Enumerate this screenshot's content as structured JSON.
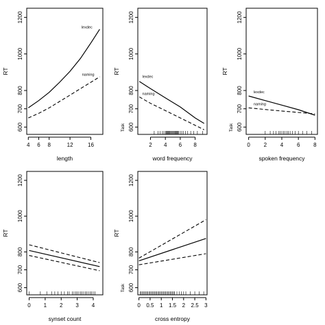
{
  "chart_data": [
    {
      "type": "line",
      "xlabel": "length",
      "ylabel": "RT",
      "side_label": "",
      "xlim": [
        3.7,
        18.3
      ],
      "ylim": [
        560,
        1250
      ],
      "xticks": [
        4,
        6,
        8,
        12,
        16
      ],
      "yticks": [
        600,
        700,
        800,
        1000,
        1200
      ],
      "series": [
        {
          "name": "lexdec",
          "style": "solid",
          "x": [
            4,
            6,
            8,
            10,
            12,
            14,
            16,
            17.7
          ],
          "y": [
            705,
            745,
            790,
            845,
            905,
            975,
            1060,
            1135
          ]
        },
        {
          "name": "naming",
          "style": "dashed",
          "x": [
            4,
            6,
            8,
            10,
            12,
            14,
            16,
            17.7
          ],
          "y": [
            650,
            675,
            705,
            740,
            775,
            810,
            845,
            875
          ]
        }
      ],
      "label_pos": [
        {
          "x": 14.2,
          "y": 1140
        },
        {
          "x": 14.3,
          "y": 880
        }
      ],
      "rug": []
    },
    {
      "type": "line",
      "xlabel": "word frequency",
      "ylabel": "RT",
      "side_label": "Task",
      "xlim": [
        0.3,
        9.6
      ],
      "ylim": [
        560,
        1250
      ],
      "xticks": [
        2,
        4,
        6,
        8
      ],
      "yticks": [
        600,
        700,
        800,
        1000,
        1200
      ],
      "series": [
        {
          "name": "lexdec",
          "style": "solid",
          "x": [
            0.5,
            2,
            4,
            6,
            8,
            9.2
          ],
          "y": [
            850,
            810,
            760,
            710,
            650,
            620
          ]
        },
        {
          "name": "naming",
          "style": "dashed",
          "x": [
            0.5,
            2,
            4,
            6,
            8,
            9.2
          ],
          "y": [
            765,
            730,
            690,
            650,
            610,
            585
          ]
        }
      ],
      "label_pos": [
        {
          "x": 0.9,
          "y": 870
        },
        {
          "x": 0.9,
          "y": 775
        }
      ],
      "rug": [
        2.5,
        3.0,
        3.3,
        3.6,
        3.8,
        4.0,
        4.1,
        4.2,
        4.3,
        4.4,
        4.5,
        4.6,
        4.7,
        4.8,
        4.9,
        5.0,
        5.1,
        5.2,
        5.3,
        5.4,
        5.5,
        5.6,
        5.7,
        5.8,
        6.0,
        6.2,
        6.4,
        6.7,
        7.0,
        7.4,
        7.8,
        8.3,
        9.0
      ]
    },
    {
      "type": "line",
      "xlabel": "spoken frequency",
      "ylabel": "RT",
      "side_label": "Task",
      "xlim": [
        -0.3,
        8.3
      ],
      "ylim": [
        560,
        1250
      ],
      "xticks": [
        0,
        2,
        4,
        6,
        8
      ],
      "yticks": [
        600,
        700,
        800,
        1000,
        1200
      ],
      "series": [
        {
          "name": "lexdec",
          "style": "solid",
          "x": [
            0,
            2,
            4,
            6,
            8
          ],
          "y": [
            770,
            745,
            720,
            695,
            665
          ]
        },
        {
          "name": "naming",
          "style": "dashed",
          "x": [
            0,
            2,
            4,
            6,
            8
          ],
          "y": [
            705,
            696,
            688,
            680,
            672
          ]
        }
      ],
      "label_pos": [
        {
          "x": 0.6,
          "y": 785
        },
        {
          "x": 0.6,
          "y": 720
        }
      ],
      "rug": [
        2.0,
        2.6,
        3.0,
        3.3,
        3.6,
        3.8,
        4.0,
        4.2,
        4.4,
        4.6,
        4.8,
        5.0,
        5.3,
        5.6,
        6.0,
        6.5,
        7.0,
        7.6
      ]
    },
    {
      "type": "line",
      "xlabel": "synset count",
      "ylabel": "RT",
      "side_label": "",
      "xlim": [
        -0.15,
        4.6
      ],
      "ylim": [
        560,
        1250
      ],
      "xticks": [
        0,
        1,
        2,
        3,
        4
      ],
      "yticks": [
        600,
        700,
        800,
        1000,
        1200
      ],
      "series": [
        {
          "name": "",
          "style": "solid",
          "x": [
            0,
            4.4
          ],
          "y": [
            808,
            718
          ]
        },
        {
          "name": "",
          "style": "dashed",
          "x": [
            0,
            4.4
          ],
          "y": [
            840,
            740
          ]
        },
        {
          "name": "",
          "style": "dashed",
          "x": [
            0,
            4.4
          ],
          "y": [
            780,
            695
          ]
        }
      ],
      "label_pos": [],
      "rug": [
        0.0,
        0.7,
        1.1,
        1.4,
        1.6,
        1.8,
        2.0,
        2.2,
        2.4,
        2.5,
        2.7,
        2.8,
        2.9,
        3.0,
        3.1,
        3.2,
        3.3,
        3.4,
        3.5,
        3.6,
        3.7,
        3.8,
        3.9,
        4.0,
        4.1
      ]
    },
    {
      "type": "line",
      "xlabel": "cross entropy",
      "ylabel": "RT",
      "side_label": "Task",
      "xlim": [
        -0.05,
        3.05
      ],
      "ylim": [
        560,
        1250
      ],
      "xticks": [
        0,
        0.5,
        1.0,
        1.5,
        2.0,
        2.5,
        3.0
      ],
      "yticks": [
        600,
        700,
        800,
        1000,
        1200
      ],
      "series": [
        {
          "name": "",
          "style": "solid",
          "x": [
            0,
            3.0
          ],
          "y": [
            750,
            875
          ]
        },
        {
          "name": "",
          "style": "dashed",
          "x": [
            0,
            3.0
          ],
          "y": [
            765,
            980
          ]
        },
        {
          "name": "",
          "style": "dashed",
          "x": [
            0,
            3.0
          ],
          "y": [
            728,
            790
          ]
        }
      ],
      "label_pos": [],
      "rug": [
        0.05,
        0.1,
        0.15,
        0.2,
        0.25,
        0.3,
        0.35,
        0.4,
        0.45,
        0.5,
        0.55,
        0.6,
        0.65,
        0.7,
        0.75,
        0.8,
        0.85,
        0.9,
        0.95,
        1.0,
        1.05,
        1.1,
        1.15,
        1.2,
        1.25,
        1.3,
        1.35,
        1.4,
        1.45,
        1.5,
        1.55,
        1.6,
        1.7,
        1.8,
        1.9,
        2.0,
        2.1,
        2.3,
        2.5,
        2.7,
        2.9
      ]
    }
  ]
}
